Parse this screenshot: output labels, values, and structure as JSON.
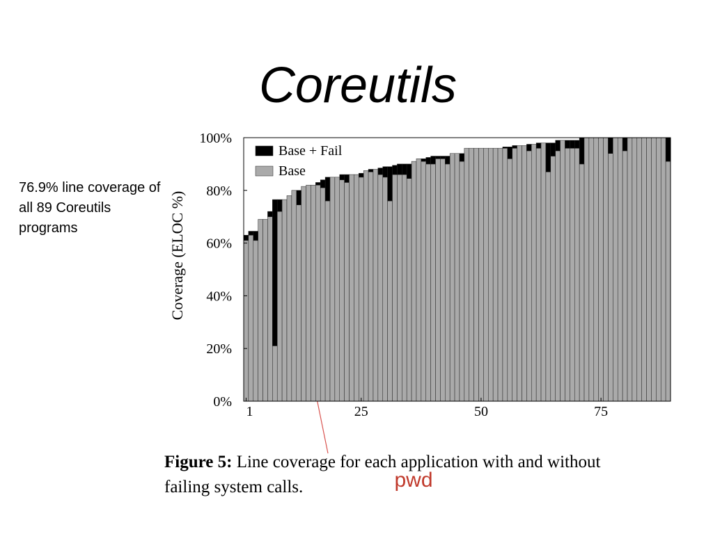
{
  "slide_title": "Coreutils",
  "side_note": [
    "76.9% line coverage of",
    "all 89 Coreutils",
    "programs"
  ],
  "chart_data": {
    "type": "stacked_bar",
    "ylabel": "Coverage (ELOC %)",
    "x": [
      1,
      2,
      3,
      4,
      5,
      6,
      7,
      8,
      9,
      10,
      11,
      12,
      13,
      14,
      15,
      16,
      17,
      18,
      19,
      20,
      21,
      22,
      23,
      24,
      25,
      26,
      27,
      28,
      29,
      30,
      31,
      32,
      33,
      34,
      35,
      36,
      37,
      38,
      39,
      40,
      41,
      42,
      43,
      44,
      45,
      46,
      47,
      48,
      49,
      50,
      51,
      52,
      53,
      54,
      55,
      56,
      57,
      58,
      59,
      60,
      61,
      62,
      63,
      64,
      65,
      66,
      67,
      68,
      69,
      70,
      71,
      72,
      73,
      74,
      75,
      76,
      77,
      78,
      79,
      80,
      81,
      82,
      83,
      84,
      85,
      86,
      87,
      88,
      89
    ],
    "xlim": [
      0.5,
      89.5
    ],
    "xticks": [
      1,
      25,
      50,
      75
    ],
    "ylim": [
      0,
      100
    ],
    "yticks": [
      {
        "value": 0,
        "label": "0%"
      },
      {
        "value": 20,
        "label": "20%"
      },
      {
        "value": 40,
        "label": "40%"
      },
      {
        "value": 60,
        "label": "60%"
      },
      {
        "value": 80,
        "label": "80%"
      },
      {
        "value": 100,
        "label": "100%"
      }
    ],
    "legend": "upper left",
    "series": [
      {
        "name": "Base",
        "color": "#aaaaaa",
        "values": [
          61,
          63,
          61,
          69,
          69,
          70,
          21,
          72,
          76.5,
          78,
          80,
          74.5,
          81.5,
          82,
          82,
          82,
          81,
          76,
          85,
          85,
          84,
          83,
          86,
          86,
          85,
          87.5,
          87,
          88,
          86,
          85,
          76,
          86,
          86,
          86,
          84.5,
          91,
          92,
          91,
          90,
          90,
          92,
          92,
          90,
          94,
          94,
          91,
          96,
          96,
          96,
          96,
          96,
          96,
          96,
          96,
          96,
          92,
          96,
          97,
          97,
          95,
          97.5,
          96,
          98,
          87,
          93,
          95,
          99,
          96,
          96,
          96,
          90,
          100,
          100,
          100,
          100,
          100,
          94,
          100,
          100,
          95,
          100,
          100,
          100,
          100,
          100,
          100,
          100,
          100,
          91
        ]
      },
      {
        "name": "Base + Fail",
        "color": "#000000",
        "values": [
          2,
          1.5,
          3.5,
          0,
          0,
          2,
          55.5,
          4.5,
          0,
          0,
          0,
          5.5,
          0,
          0,
          0,
          1,
          3,
          9,
          0,
          0,
          2,
          3,
          0,
          0,
          1.5,
          0,
          1,
          0,
          2.5,
          4,
          13,
          3.5,
          4,
          4,
          5.5,
          0,
          0,
          1,
          2.5,
          3,
          1,
          1,
          3,
          0,
          0,
          3,
          0,
          0,
          0,
          0,
          0,
          0,
          0,
          0,
          0.5,
          4.5,
          1,
          0,
          0,
          2.5,
          0,
          2,
          0,
          11,
          5,
          4,
          0,
          3,
          3,
          3,
          10,
          0,
          0,
          0,
          0,
          0,
          6,
          0,
          0,
          5,
          0,
          0,
          0,
          0,
          0,
          0,
          0,
          0,
          9
        ]
      }
    ]
  },
  "caption": {
    "label": "Figure 5:",
    "lines": [
      " Line coverage for each application with and without",
      "failing system calls."
    ]
  },
  "annotation": "pwd"
}
